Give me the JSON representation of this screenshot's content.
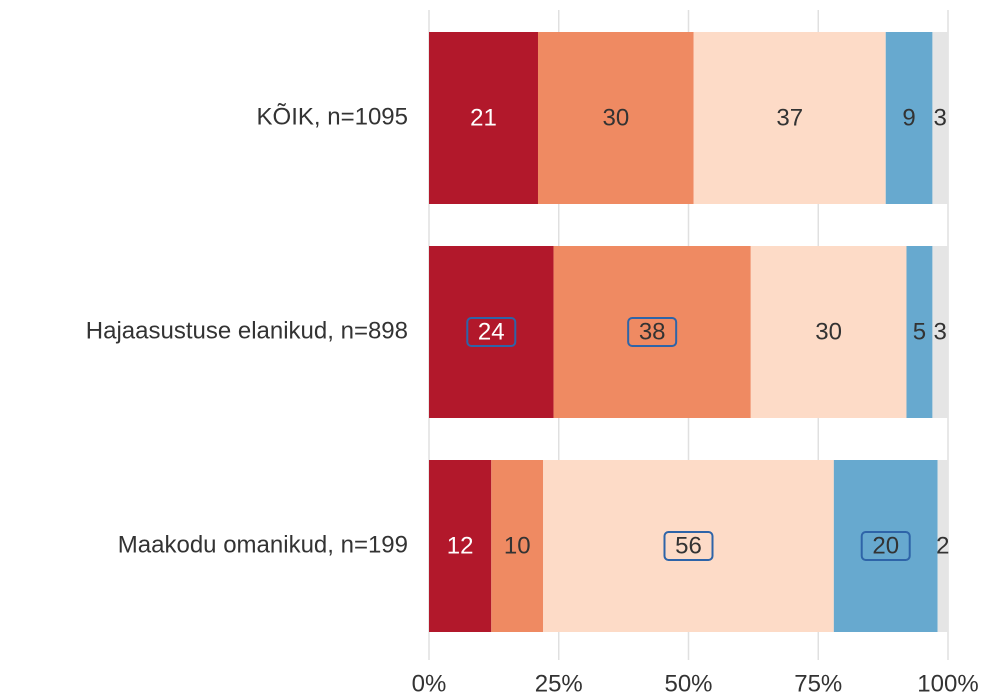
{
  "chart_data": {
    "type": "stacked_bar",
    "orientation": "horizontal",
    "categories": [
      "KÕIK, n=1095",
      "Hajaasustuse elanikud, n=898",
      "Maakodu omanikud, n=199"
    ],
    "series": [
      {
        "color": "#b2182b",
        "label_color": "#ffffff",
        "values": [
          21,
          24,
          12
        ],
        "boxed": [
          false,
          true,
          false
        ]
      },
      {
        "color": "#ef8a62",
        "label_color": "#333333",
        "values": [
          30,
          38,
          10
        ],
        "boxed": [
          false,
          true,
          false
        ]
      },
      {
        "color": "#fddbc7",
        "label_color": "#333333",
        "values": [
          37,
          30,
          56
        ],
        "boxed": [
          false,
          false,
          true
        ]
      },
      {
        "color": "#67a9cf",
        "label_color": "#333333",
        "values": [
          9,
          5,
          20
        ],
        "boxed": [
          false,
          false,
          true
        ]
      },
      {
        "color": "#e5e5e5",
        "label_color": "#333333",
        "values": [
          3,
          3,
          2
        ],
        "boxed": [
          false,
          false,
          false
        ]
      }
    ],
    "xlim": [
      0,
      100
    ],
    "xticks": [
      {
        "value": 0,
        "label": "0%"
      },
      {
        "value": 25,
        "label": "25%"
      },
      {
        "value": 50,
        "label": "50%"
      },
      {
        "value": 75,
        "label": "75%"
      },
      {
        "value": 100,
        "label": "100%"
      }
    ],
    "grid": true,
    "box_color": "#2e64a8"
  }
}
